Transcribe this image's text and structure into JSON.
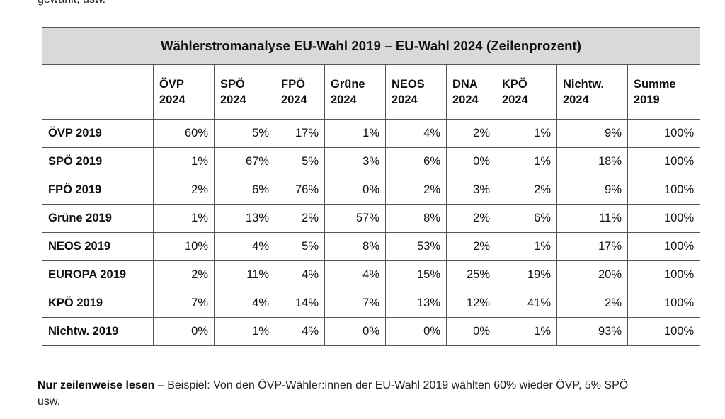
{
  "top_fragment": "gewählt, usw.",
  "table": {
    "title": "Wählerstromanalyse EU-Wahl 2019 – EU-Wahl 2024 (Zeilenprozent)",
    "columns": [
      [
        "ÖVP",
        "2024"
      ],
      [
        "SPÖ",
        "2024"
      ],
      [
        "FPÖ",
        "2024"
      ],
      [
        "Grüne",
        "2024"
      ],
      [
        "NEOS",
        "2024"
      ],
      [
        "DNA",
        "2024"
      ],
      [
        "KPÖ",
        "2024"
      ],
      [
        "Nichtw.",
        "2024"
      ],
      [
        "Summe",
        "2019"
      ]
    ],
    "rows": [
      {
        "label": "ÖVP 2019",
        "cells": [
          "60%",
          "5%",
          "17%",
          "1%",
          "4%",
          "2%",
          "1%",
          "9%",
          "100%"
        ]
      },
      {
        "label": "SPÖ 2019",
        "cells": [
          "1%",
          "67%",
          "5%",
          "3%",
          "6%",
          "0%",
          "1%",
          "18%",
          "100%"
        ]
      },
      {
        "label": "FPÖ 2019",
        "cells": [
          "2%",
          "6%",
          "76%",
          "0%",
          "2%",
          "3%",
          "2%",
          "9%",
          "100%"
        ]
      },
      {
        "label": "Grüne 2019",
        "cells": [
          "1%",
          "13%",
          "2%",
          "57%",
          "8%",
          "2%",
          "6%",
          "11%",
          "100%"
        ]
      },
      {
        "label": "NEOS 2019",
        "cells": [
          "10%",
          "4%",
          "5%",
          "8%",
          "53%",
          "2%",
          "1%",
          "17%",
          "100%"
        ]
      },
      {
        "label": "EUROPA 2019",
        "cells": [
          "2%",
          "11%",
          "4%",
          "4%",
          "15%",
          "25%",
          "19%",
          "20%",
          "100%"
        ]
      },
      {
        "label": "KPÖ 2019",
        "cells": [
          "7%",
          "4%",
          "14%",
          "7%",
          "13%",
          "12%",
          "41%",
          "2%",
          "100%"
        ]
      },
      {
        "label": "Nichtw. 2019",
        "cells": [
          "0%",
          "1%",
          "4%",
          "0%",
          "0%",
          "0%",
          "1%",
          "93%",
          "100%"
        ]
      }
    ]
  },
  "note": {
    "bold": "Nur zeilenweise lesen",
    "rest": " – Beispiel: Von den ÖVP-Wähler:innen der EU-Wahl 2019 wählten 60% wieder ÖVP, 5% SPÖ usw."
  }
}
